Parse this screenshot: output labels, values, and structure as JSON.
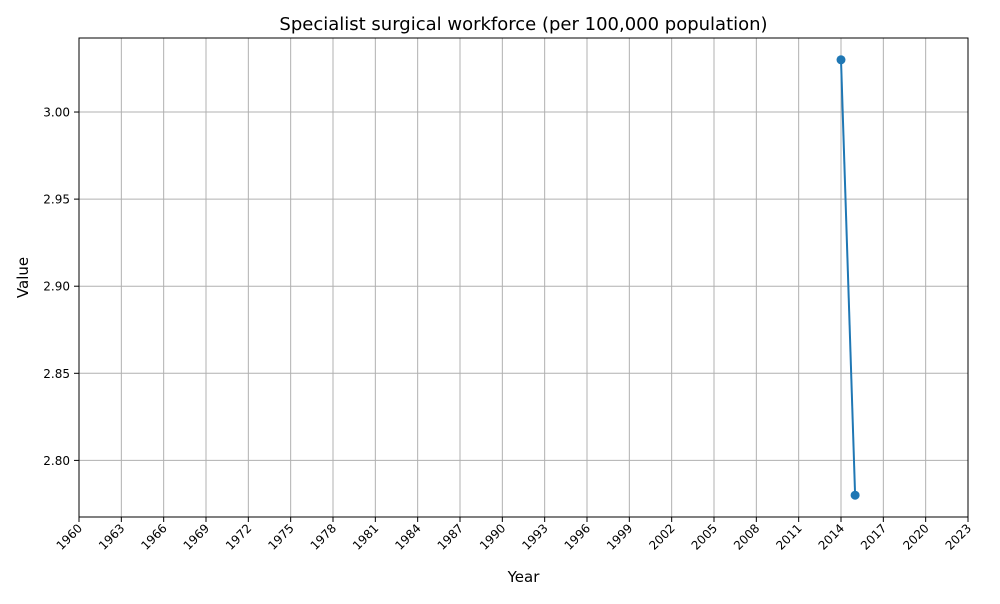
{
  "chart_data": {
    "type": "line",
    "title": "Specialist surgical workforce (per 100,000 population)",
    "xlabel": "Year",
    "ylabel": "Value",
    "x_ticks": [
      "1960",
      "1963",
      "1966",
      "1969",
      "1972",
      "1975",
      "1978",
      "1981",
      "1984",
      "1987",
      "1990",
      "1993",
      "1996",
      "1999",
      "2002",
      "2005",
      "2008",
      "2011",
      "2014",
      "2017",
      "2020",
      "2023"
    ],
    "y_ticks": [
      "2.80",
      "2.85",
      "2.90",
      "2.95",
      "3.00"
    ],
    "xlim": [
      1960,
      2023
    ],
    "ylim": [
      2.7675,
      3.0425
    ],
    "grid": true,
    "series": [
      {
        "x": [
          2014,
          2015
        ],
        "y": [
          3.03,
          2.78
        ]
      }
    ],
    "colors": {
      "line": "#1f77b4",
      "grid": "#b0b0b0",
      "axis": "#000000"
    }
  }
}
